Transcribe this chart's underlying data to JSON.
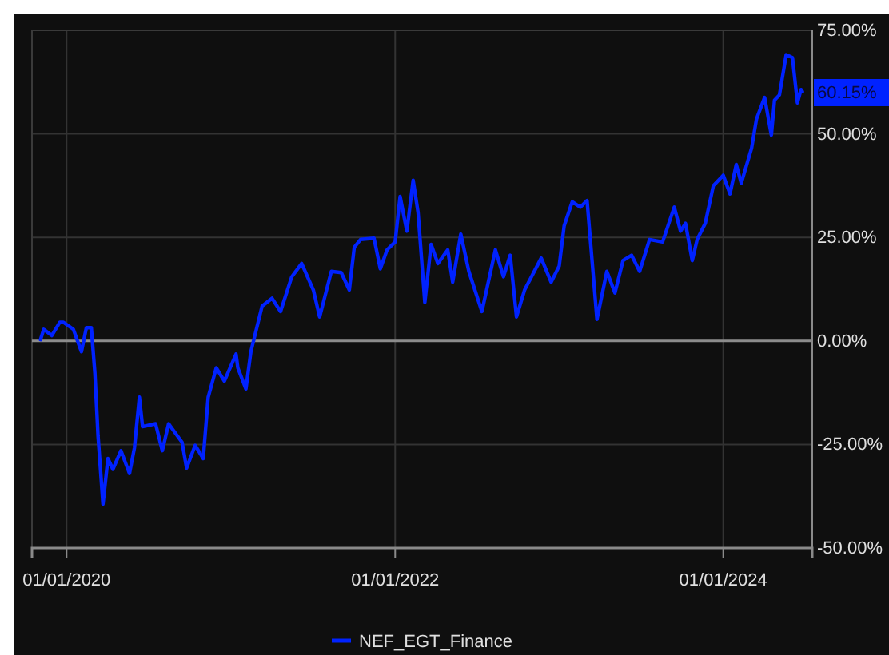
{
  "chart_data": {
    "type": "line",
    "xlim": [
      "2019-10-16",
      "2024-07-17"
    ],
    "ylim": [
      -50,
      75
    ],
    "xticks": [
      {
        "value": "2020-01-01",
        "label": "01/01/2020"
      },
      {
        "value": "2022-01-01",
        "label": "01/01/2022"
      },
      {
        "value": "2024-01-01",
        "label": "01/01/2024"
      }
    ],
    "yticks": [
      {
        "value": -50,
        "label": "-50.00%"
      },
      {
        "value": -25,
        "label": "-25.00%"
      },
      {
        "value": 0,
        "label": "0.00%"
      },
      {
        "value": 25,
        "label": "25.00%"
      },
      {
        "value": 50,
        "label": "50.00%"
      },
      {
        "value": 75,
        "label": "75.00%"
      }
    ],
    "grid": true,
    "legend": "bottom",
    "line_style": "solid",
    "marker": "none",
    "ref_lines": [
      {
        "axis": "y",
        "value": 0,
        "color": "#8c8c8c"
      }
    ],
    "annotations": [
      {
        "text": "60.15%",
        "x": "2024-06-25",
        "y": 60.15
      }
    ],
    "series": [
      {
        "name": "NEF_EGT_Finance",
        "color": "#0022ff",
        "x": [
          "2019-11-04",
          "2019-11-11",
          "2019-11-29",
          "2019-12-17",
          "2019-12-25",
          "2020-01-16",
          "2020-02-03",
          "2020-02-14",
          "2020-02-25",
          "2020-03-04",
          "2020-03-11",
          "2020-03-22",
          "2020-04-02",
          "2020-04-13",
          "2020-05-01",
          "2020-05-20",
          "2020-05-31",
          "2020-06-11",
          "2020-06-18",
          "2020-07-17",
          "2020-08-01",
          "2020-08-15",
          "2020-09-14",
          "2020-09-24",
          "2020-10-13",
          "2020-10-31",
          "2020-11-11",
          "2020-11-29",
          "2020-12-17",
          "2021-01-12",
          "2021-01-16",
          "2021-02-03",
          "2021-02-14",
          "2021-03-11",
          "2021-04-02",
          "2021-04-21",
          "2021-05-16",
          "2021-06-07",
          "2021-07-03",
          "2021-07-17",
          "2021-08-12",
          "2021-09-03",
          "2021-09-21",
          "2021-10-02",
          "2021-10-16",
          "2021-11-15",
          "2021-11-29",
          "2021-12-14",
          "2022-01-01",
          "2022-01-12",
          "2022-01-27",
          "2022-02-10",
          "2022-02-21",
          "2022-03-08",
          "2022-03-22",
          "2022-04-06",
          "2022-04-28",
          "2022-05-09",
          "2022-05-27",
          "2022-06-14",
          "2022-07-13",
          "2022-08-12",
          "2022-08-30",
          "2022-09-14",
          "2022-09-28",
          "2022-10-16",
          "2022-11-22",
          "2022-12-14",
          "2023-01-01",
          "2023-01-12",
          "2023-01-30",
          "2023-02-17",
          "2023-03-04",
          "2023-03-26",
          "2023-04-17",
          "2023-05-05",
          "2023-05-23",
          "2023-06-11",
          "2023-06-29",
          "2023-07-21",
          "2023-08-19",
          "2023-09-14",
          "2023-09-28",
          "2023-10-09",
          "2023-10-24",
          "2023-11-04",
          "2023-11-22",
          "2023-12-10",
          "2024-01-01",
          "2024-01-16",
          "2024-01-30",
          "2024-02-10",
          "2024-03-04",
          "2024-03-15",
          "2024-04-02",
          "2024-04-17",
          "2024-04-24",
          "2024-05-05",
          "2024-05-20",
          "2024-06-03",
          "2024-06-14",
          "2024-06-22",
          "2024-06-25"
        ],
        "values": [
          0.3,
          2.8,
          1.3,
          4.5,
          4.5,
          2.8,
          -2.6,
          3.2,
          3.2,
          -7.8,
          -23,
          -39.4,
          -28.4,
          -31,
          -26.5,
          -32,
          -25.8,
          -13.6,
          -20.7,
          -20,
          -26.5,
          -20,
          -24.5,
          -30.7,
          -25.2,
          -28.4,
          -13.6,
          -6.5,
          -9.7,
          -3.2,
          -6.5,
          -11.6,
          -2.6,
          8.4,
          10.3,
          7.1,
          15.5,
          18.7,
          12.3,
          5.8,
          16.8,
          16.5,
          12.3,
          22.6,
          24.5,
          24.8,
          17.4,
          22,
          23.9,
          34.9,
          26.5,
          38.8,
          31,
          9.3,
          23.3,
          18.7,
          22,
          14.2,
          25.8,
          16.8,
          7.1,
          22,
          15.5,
          20.7,
          5.8,
          12.3,
          20,
          14.2,
          18.1,
          27.8,
          33.6,
          32.3,
          33.9,
          5.2,
          16.8,
          11.6,
          19.4,
          20.7,
          16.8,
          24.5,
          23.9,
          32.3,
          26.5,
          28.4,
          19.4,
          24.5,
          28.4,
          37.5,
          40,
          35.5,
          42.6,
          38.1,
          46.5,
          53.6,
          58.8,
          49.7,
          58.1,
          59.4,
          69.1,
          68.4,
          57.5,
          60.7,
          60.2
        ]
      }
    ]
  }
}
